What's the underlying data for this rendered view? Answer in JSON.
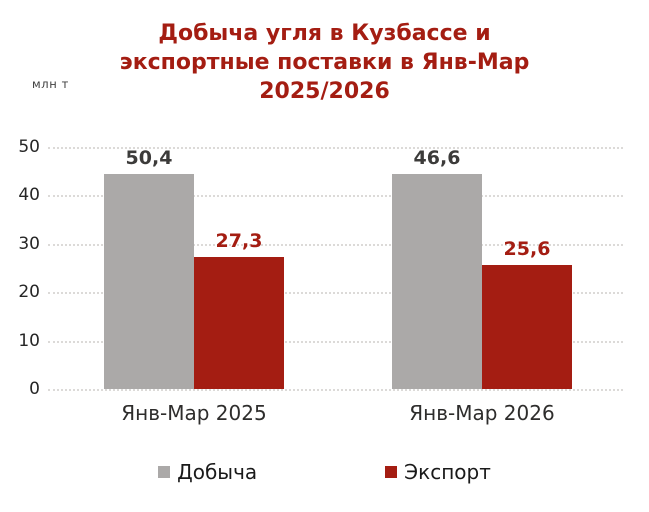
{
  "title": {
    "lines": [
      "Добыча угля в Кузбассе и",
      "экспортные поставки в Янв-Мар",
      "2025/2026"
    ]
  },
  "unit_label": "млн т",
  "colors": {
    "accent_red": "#A41D12",
    "bar_gray": "#ABA9A8",
    "data_label_dark": "#3C3B3A",
    "gridline": "#DCDAD8",
    "background": "#FFFFFF"
  },
  "y_axis": {
    "ticks": [
      "50",
      "40",
      "30",
      "20",
      "10",
      "0"
    ]
  },
  "x_axis": {
    "labels": [
      "Янв-Мар 2025",
      "Янв-Мар 2026"
    ]
  },
  "legend": {
    "items": [
      {
        "label": "Добыча",
        "color": "#ABA9A8"
      },
      {
        "label": "Экспорт",
        "color": "#A41D12"
      }
    ]
  },
  "chart_data": {
    "type": "bar",
    "title": "Добыча угля в Кузбассе и экспортные поставки в Янв-Мар 2025/2026",
    "categories": [
      "Янв-Мар 2025",
      "Янв-Мар 2026"
    ],
    "series": [
      {
        "name": "Добыча",
        "color": "#ABA9A8",
        "values": [
          50.4,
          46.6
        ],
        "labels": [
          "50,4",
          "46,6"
        ]
      },
      {
        "name": "Экспорт",
        "color": "#A41D12",
        "values": [
          27.3,
          25.6
        ],
        "labels": [
          "27,3",
          "25,6"
        ]
      }
    ],
    "xlabel": "",
    "ylabel": "млн т",
    "ylim": [
      0,
      50
    ],
    "yticks": [
      0,
      10,
      20,
      30,
      40,
      50
    ],
    "grid": "horizontal-dotted",
    "legend_position": "bottom",
    "data_labels": true
  }
}
